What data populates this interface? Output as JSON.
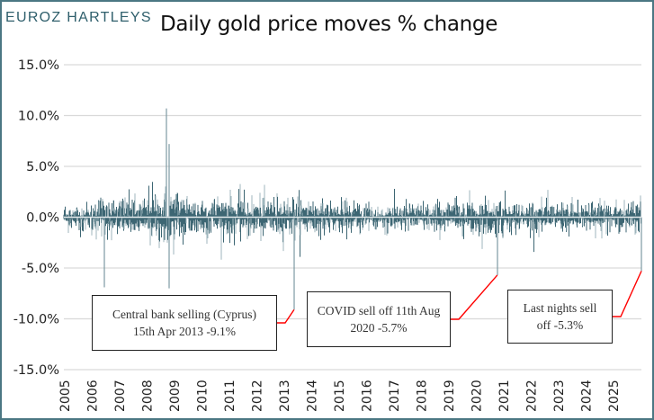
{
  "logo": "EUROZ HARTLEYS",
  "chart_data": {
    "type": "bar",
    "title": "Daily gold price moves % change",
    "xlabel": "",
    "ylabel": "",
    "ylim": [
      -15,
      15
    ],
    "y_ticks": [
      15,
      10,
      5,
      0,
      -5,
      -10,
      -15
    ],
    "y_tick_labels": [
      "15.0%",
      "10.0%",
      "5.0%",
      "0.0%",
      "-5.0%",
      "-10.0%",
      "-15.0%"
    ],
    "x_range": [
      2005,
      2025.8
    ],
    "x_tick_labels": [
      "2005",
      "2006",
      "2007",
      "2008",
      "2009",
      "2010",
      "2011",
      "2012",
      "2013",
      "2014",
      "2015",
      "2016",
      "2017",
      "2018",
      "2019",
      "2020",
      "2021",
      "2022",
      "2023",
      "2024",
      "2025"
    ],
    "grid": true,
    "series_colors": {
      "primary": "#3d6673",
      "secondary": "#9fb6bd"
    },
    "typical_daily_range_pct": [
      -2.5,
      3.0
    ],
    "notable_points": [
      {
        "date": "2006-06",
        "value": -6.9
      },
      {
        "date": "2008-09",
        "value": 10.7
      },
      {
        "date": "2008-10",
        "value": 7.2
      },
      {
        "date": "2008-10",
        "value": -7.0
      },
      {
        "date": "2013-04-15",
        "value": -9.1
      },
      {
        "date": "2020-08-11",
        "value": -5.7
      },
      {
        "date": "2025-10",
        "value": -5.3
      }
    ],
    "annotations": [
      {
        "text": "Central bank selling (Cyprus)\n15th Apr 2013 -9.1%",
        "x": 2013.29,
        "y": -9.1,
        "connector_color": "#ff0000"
      },
      {
        "text": "COVID sell off 11th Aug\n2020 -5.7%",
        "x": 2020.61,
        "y": -5.7,
        "connector_color": "#ff0000"
      },
      {
        "text": "Last nights sell\noff -5.3%",
        "x": 2025.8,
        "y": -5.3,
        "connector_color": "#ff0000"
      }
    ]
  }
}
